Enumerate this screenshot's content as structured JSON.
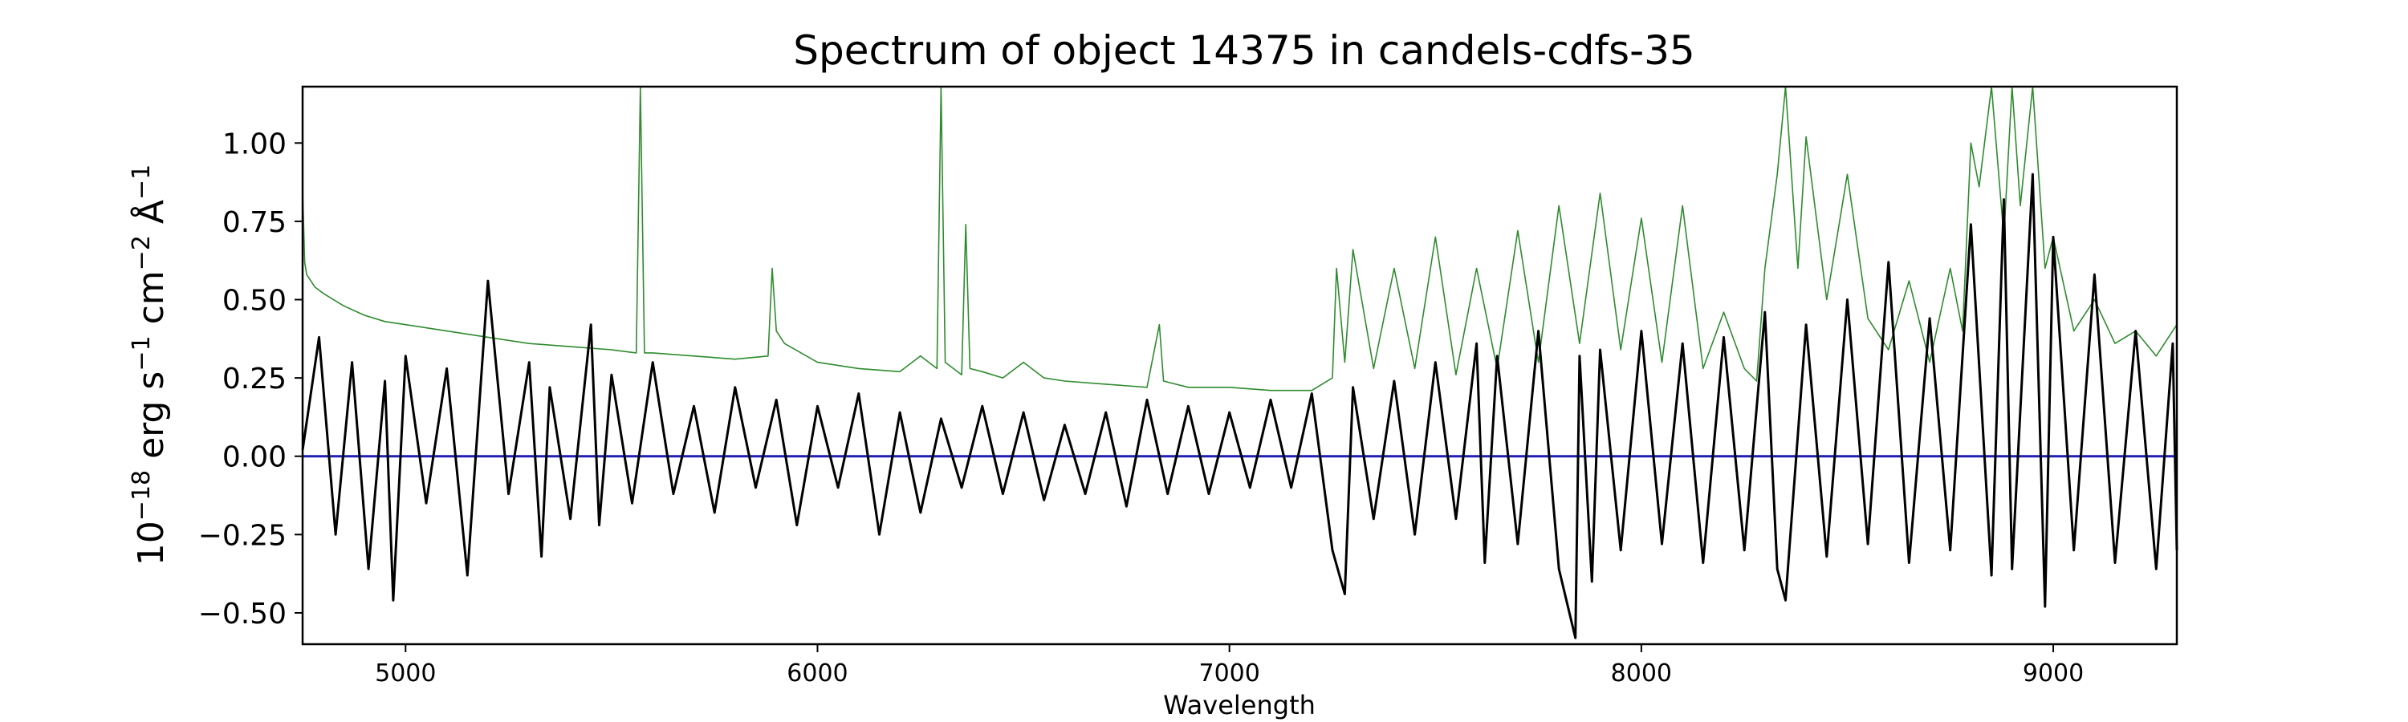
{
  "chart_data": {
    "type": "line",
    "title": "Spectrum of object 14375 in candels-cdfs-35",
    "xlabel": "Wavelength",
    "ylabel": {
      "base": "10",
      "exp1": "−18",
      "unit1": " erg s",
      "exp2": "−1",
      "unit2": " cm",
      "exp3": "−2",
      "unit3": " Å",
      "exp4": "−1"
    },
    "xlim": [
      4750,
      9300
    ],
    "ylim": [
      -0.6,
      1.18
    ],
    "x_ticks": [
      5000,
      6000,
      7000,
      8000,
      9000
    ],
    "x_tick_labels": [
      "5000",
      "6000",
      "7000",
      "8000",
      "9000"
    ],
    "y_ticks": [
      -0.5,
      -0.25,
      0.0,
      0.25,
      0.5,
      0.75,
      1.0
    ],
    "y_tick_labels": [
      "−0.50",
      "−0.25",
      "0.00",
      "0.25",
      "0.50",
      "0.75",
      "1.00"
    ],
    "grid": false,
    "colors": {
      "flux": "#000000",
      "error": "#2e8b2e",
      "model": "#1f1fb4"
    },
    "series": [
      {
        "role": "flux",
        "x": [
          4750,
          4790,
          4830,
          4870,
          4910,
          4950,
          4970,
          5000,
          5050,
          5100,
          5150,
          5200,
          5250,
          5300,
          5330,
          5350,
          5400,
          5450,
          5470,
          5500,
          5550,
          5600,
          5650,
          5700,
          5750,
          5800,
          5850,
          5900,
          5950,
          6000,
          6050,
          6100,
          6150,
          6200,
          6250,
          6300,
          6350,
          6400,
          6450,
          6500,
          6550,
          6600,
          6650,
          6700,
          6750,
          6800,
          6850,
          6900,
          6950,
          7000,
          7050,
          7100,
          7150,
          7200,
          7250,
          7280,
          7300,
          7350,
          7400,
          7450,
          7500,
          7550,
          7600,
          7620,
          7650,
          7700,
          7750,
          7800,
          7840,
          7850,
          7880,
          7900,
          7950,
          8000,
          8050,
          8100,
          8150,
          8200,
          8250,
          8300,
          8330,
          8350,
          8400,
          8450,
          8500,
          8550,
          8600,
          8650,
          8700,
          8750,
          8800,
          8850,
          8880,
          8900,
          8950,
          8980,
          9000,
          9050,
          9100,
          9150,
          9200,
          9250,
          9290,
          9300
        ],
        "y": [
          0.02,
          0.38,
          -0.25,
          0.3,
          -0.36,
          0.24,
          -0.46,
          0.32,
          -0.15,
          0.28,
          -0.38,
          0.56,
          -0.12,
          0.3,
          -0.32,
          0.22,
          -0.2,
          0.42,
          -0.22,
          0.26,
          -0.15,
          0.3,
          -0.12,
          0.16,
          -0.18,
          0.22,
          -0.1,
          0.18,
          -0.22,
          0.16,
          -0.1,
          0.2,
          -0.25,
          0.14,
          -0.18,
          0.12,
          -0.1,
          0.16,
          -0.12,
          0.14,
          -0.14,
          0.1,
          -0.12,
          0.14,
          -0.16,
          0.18,
          -0.12,
          0.16,
          -0.12,
          0.14,
          -0.1,
          0.18,
          -0.1,
          0.2,
          -0.3,
          -0.44,
          0.22,
          -0.2,
          0.24,
          -0.25,
          0.3,
          -0.2,
          0.36,
          -0.34,
          0.32,
          -0.28,
          0.4,
          -0.36,
          -0.58,
          0.32,
          -0.4,
          0.34,
          -0.3,
          0.4,
          -0.28,
          0.36,
          -0.34,
          0.38,
          -0.3,
          0.46,
          -0.36,
          -0.46,
          0.42,
          -0.32,
          0.5,
          -0.28,
          0.62,
          -0.34,
          0.44,
          -0.3,
          0.74,
          -0.38,
          0.82,
          -0.36,
          0.9,
          -0.48,
          0.7,
          -0.3,
          0.58,
          -0.34,
          0.4,
          -0.36,
          0.36,
          -0.3
        ]
      },
      {
        "role": "error",
        "x": [
          4750,
          4755,
          4760,
          4780,
          4800,
          4850,
          4900,
          4950,
          5000,
          5100,
          5200,
          5300,
          5400,
          5500,
          5560,
          5570,
          5580,
          5600,
          5700,
          5800,
          5880,
          5890,
          5900,
          5920,
          6000,
          6100,
          6200,
          6250,
          6290,
          6300,
          6310,
          6350,
          6360,
          6370,
          6400,
          6450,
          6500,
          6550,
          6600,
          6700,
          6800,
          6830,
          6840,
          6900,
          7000,
          7100,
          7200,
          7250,
          7260,
          7280,
          7300,
          7350,
          7400,
          7450,
          7500,
          7550,
          7600,
          7650,
          7700,
          7750,
          7800,
          7850,
          7900,
          7950,
          8000,
          8050,
          8100,
          8150,
          8200,
          8250,
          8280,
          8300,
          8330,
          8350,
          8380,
          8400,
          8450,
          8500,
          8550,
          8600,
          8650,
          8700,
          8750,
          8780,
          8800,
          8820,
          8850,
          8880,
          8900,
          8920,
          8950,
          8980,
          9000,
          9050,
          9100,
          9150,
          9200,
          9250,
          9300
        ],
        "y": [
          0.85,
          0.62,
          0.58,
          0.54,
          0.52,
          0.48,
          0.45,
          0.43,
          0.42,
          0.4,
          0.38,
          0.36,
          0.35,
          0.34,
          0.33,
          1.18,
          0.33,
          0.33,
          0.32,
          0.31,
          0.32,
          0.6,
          0.4,
          0.36,
          0.3,
          0.28,
          0.27,
          0.32,
          0.28,
          1.18,
          0.3,
          0.26,
          0.74,
          0.28,
          0.27,
          0.25,
          0.3,
          0.25,
          0.24,
          0.23,
          0.22,
          0.42,
          0.24,
          0.22,
          0.22,
          0.21,
          0.21,
          0.25,
          0.6,
          0.3,
          0.66,
          0.28,
          0.6,
          0.28,
          0.7,
          0.26,
          0.6,
          0.28,
          0.72,
          0.3,
          0.8,
          0.36,
          0.84,
          0.34,
          0.76,
          0.3,
          0.8,
          0.28,
          0.46,
          0.28,
          0.24,
          0.6,
          0.9,
          1.18,
          0.6,
          1.02,
          0.5,
          0.9,
          0.44,
          0.34,
          0.56,
          0.3,
          0.6,
          0.4,
          1.0,
          0.86,
          1.18,
          0.7,
          1.18,
          0.8,
          1.18,
          0.6,
          0.7,
          0.4,
          0.5,
          0.36,
          0.4,
          0.32,
          0.42
        ]
      },
      {
        "role": "model",
        "x": [
          4750,
          9300
        ],
        "y": [
          0.0,
          0.0
        ]
      }
    ]
  }
}
